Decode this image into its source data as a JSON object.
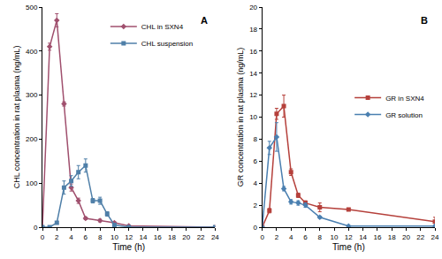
{
  "chart_data": [
    {
      "type": "line",
      "annotation": "A",
      "x_label": "Time (h)",
      "y_label": "CHL concentration in rat plasma (ng/mL)",
      "xlim": [
        0,
        24
      ],
      "xticks": [
        0,
        2,
        4,
        6,
        8,
        10,
        12,
        14,
        16,
        18,
        20,
        22,
        24
      ],
      "ylim": [
        0,
        500
      ],
      "yticks": [
        0,
        100,
        200,
        300,
        400,
        500
      ],
      "grid": false,
      "legend": "upper right",
      "series": [
        {
          "name": "CHL in SXN4",
          "color": "#a0506e",
          "marker": "diamond",
          "line_style": "solid",
          "x": [
            0,
            1,
            2,
            3,
            4,
            5,
            6,
            8,
            10,
            12,
            24
          ],
          "values": [
            0,
            410,
            470,
            280,
            90,
            60,
            20,
            15,
            10,
            3,
            0
          ],
          "errors": [
            0,
            8,
            15,
            5,
            8,
            6,
            3,
            3,
            2,
            1,
            0
          ]
        },
        {
          "name": "CHL suspension",
          "color": "#4f7fa8",
          "marker": "square",
          "line_style": "solid",
          "x": [
            0,
            1,
            2,
            3,
            4,
            5,
            6,
            7,
            8,
            9,
            10,
            12,
            24
          ],
          "values": [
            0,
            0,
            10,
            90,
            105,
            125,
            140,
            60,
            60,
            30,
            5,
            0,
            0
          ],
          "errors": [
            0,
            0,
            3,
            15,
            12,
            15,
            15,
            5,
            8,
            5,
            2,
            0,
            0
          ]
        }
      ]
    },
    {
      "type": "line",
      "annotation": "B",
      "x_label": "Time (h)",
      "y_label": "GR concentration in rat plasma (ng/mL)",
      "xlim": [
        0,
        24
      ],
      "xticks": [
        0,
        2,
        4,
        6,
        8,
        10,
        12,
        14,
        16,
        18,
        20,
        22,
        24
      ],
      "ylim": [
        0,
        20
      ],
      "yticks": [
        0,
        2,
        4,
        6,
        8,
        10,
        12,
        14,
        16,
        18,
        20
      ],
      "grid": false,
      "legend": "center right",
      "series": [
        {
          "name": "GR in SXN4",
          "color": "#b5403b",
          "marker": "square",
          "line_style": "solid",
          "x": [
            0,
            1,
            2,
            3,
            4,
            5,
            6,
            8,
            12,
            24
          ],
          "values": [
            0,
            1.5,
            10.3,
            11,
            5,
            2.9,
            2.2,
            1.8,
            1.6,
            0.5
          ],
          "errors": [
            0,
            0.2,
            0.5,
            1,
            0.3,
            0.2,
            0.2,
            0.4,
            0.1,
            0.4
          ]
        },
        {
          "name": "GR solution",
          "color": "#4a7fb0",
          "marker": "diamond",
          "line_style": "solid",
          "x": [
            0,
            1,
            2,
            3,
            4,
            5,
            6,
            8,
            12,
            24
          ],
          "values": [
            0,
            7.2,
            8.2,
            3.5,
            2.3,
            2.2,
            2,
            0.9,
            0.1,
            0.1
          ],
          "errors": [
            0,
            0.6,
            1.3,
            0.2,
            0.2,
            0.2,
            0.2,
            0.1,
            0.05,
            0.05
          ]
        }
      ]
    }
  ]
}
